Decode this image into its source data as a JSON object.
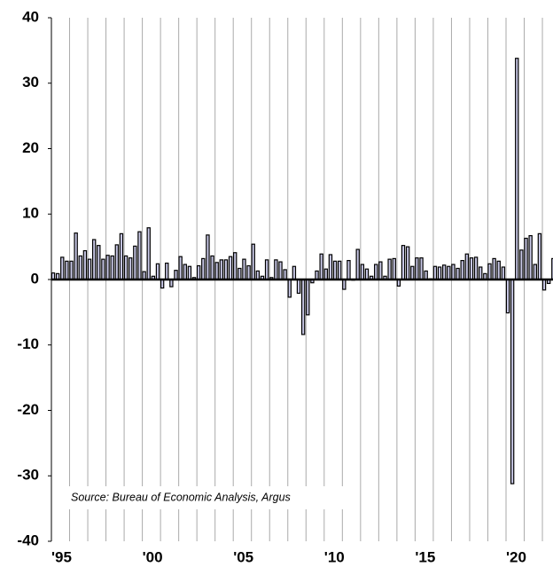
{
  "chart_data": {
    "type": "bar",
    "annotation": "Source: Bureau of Economic Analysis, Argus",
    "categories": [
      "'95",
      null,
      null,
      null,
      null,
      null,
      null,
      null,
      null,
      null,
      null,
      null,
      null,
      null,
      null,
      null,
      null,
      null,
      null,
      null,
      "'00",
      null,
      null,
      null,
      null,
      null,
      null,
      null,
      null,
      null,
      null,
      null,
      null,
      null,
      null,
      null,
      null,
      null,
      null,
      null,
      "'05",
      null,
      null,
      null,
      null,
      null,
      null,
      null,
      null,
      null,
      null,
      null,
      null,
      null,
      null,
      null,
      null,
      null,
      null,
      null,
      "'10",
      null,
      null,
      null,
      null,
      null,
      null,
      null,
      null,
      null,
      null,
      null,
      null,
      null,
      null,
      null,
      null,
      null,
      null,
      null,
      "'15",
      null,
      null,
      null,
      null,
      null,
      null,
      null,
      null,
      null,
      null,
      null,
      null,
      null,
      null,
      null,
      null,
      null,
      null,
      null,
      "'20",
      null,
      null,
      null,
      null,
      null,
      null,
      null,
      null,
      null,
      null
    ],
    "values": [
      1.0,
      0.9,
      3.4,
      2.8,
      2.8,
      7.1,
      3.6,
      4.4,
      3.1,
      6.1,
      5.2,
      3.1,
      3.7,
      3.6,
      5.3,
      7.0,
      3.6,
      3.3,
      5.1,
      7.3,
      1.2,
      7.9,
      0.5,
      2.4,
      -1.3,
      2.5,
      -1.1,
      1.4,
      3.5,
      2.3,
      2.0,
      0.3,
      2.1,
      3.2,
      6.8,
      3.6,
      2.6,
      3.0,
      3.0,
      3.5,
      4.1,
      1.7,
      3.1,
      2.1,
      5.4,
      1.3,
      0.5,
      3.0,
      0.3,
      3.0,
      2.7,
      1.5,
      -2.7,
      2.0,
      -2.1,
      -8.4,
      -5.4,
      -0.5,
      1.3,
      3.9,
      1.6,
      3.8,
      2.8,
      2.8,
      -1.5,
      2.9,
      -0.1,
      4.6,
      2.3,
      1.6,
      0.5,
      2.3,
      2.7,
      0.5,
      3.1,
      3.2,
      -1.0,
      5.2,
      5.0,
      2.0,
      3.3,
      3.3,
      1.3,
      0.1,
      2.0,
      1.9,
      2.2,
      2.0,
      2.3,
      1.7,
      2.9,
      3.9,
      3.3,
      3.4,
      1.9,
      0.9,
      2.4,
      3.2,
      2.8,
      1.9,
      -5.1,
      -31.2,
      33.8,
      4.5,
      6.3,
      6.7,
      2.3,
      7.0,
      -1.6,
      -0.6,
      3.2
    ],
    "color": "#c8c8e6",
    "ylim": [
      -40,
      40
    ],
    "yticks": [
      -40,
      -30,
      -20,
      -10,
      0,
      10,
      20,
      30,
      40
    ],
    "grid": false
  }
}
